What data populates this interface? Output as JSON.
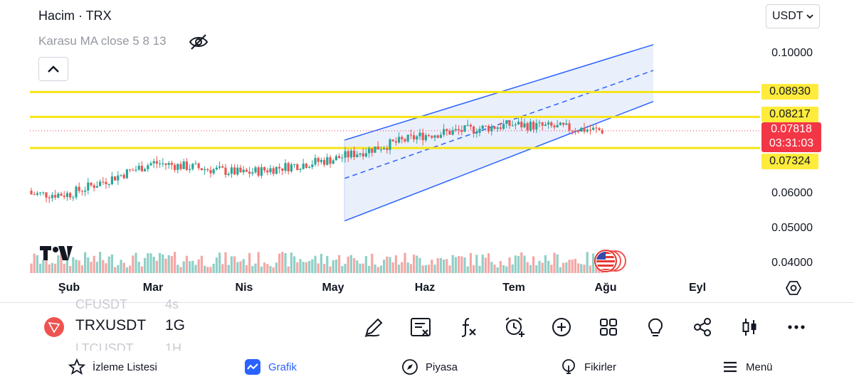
{
  "chart_header": {
    "title": "Hacim · TRX",
    "indicator": "Karasu MA close 5 8 13",
    "currency": "USDT"
  },
  "icons": {
    "visibility": "eye-off-icon",
    "collapse": "chevron-up-icon",
    "currency_dropdown": "chevron-down-icon",
    "settings": "hexagon-settings-icon",
    "logo": "tradingview-logo-icon",
    "events": "us-flag-icon"
  },
  "price_axis": {
    "labels": [
      "0.10000",
      "0.06000",
      "0.05000",
      "0.04000"
    ]
  },
  "price_tags": {
    "level_1": "0.08930",
    "level_2": "0.08217",
    "level_3": "0.07324",
    "current_price": "0.07818",
    "countdown": "03:31:03"
  },
  "time_axis": {
    "months": [
      "Şub",
      "Mar",
      "Nis",
      "May",
      "Haz",
      "Tem",
      "Ağu",
      "Eyl"
    ]
  },
  "colors": {
    "up": "#26a69a",
    "down": "#ef5350",
    "volume_up": "#8fd0c7",
    "volume_down": "#f4a7a5",
    "level_line": "#f5e416",
    "channel_line": "#2962ff",
    "channel_fill": "#e6ecfb",
    "current_price": "#f23645",
    "accent": "#2962ff"
  },
  "chart_data": {
    "type": "candlestick",
    "series_name": "TRXUSDT",
    "timeframe": "1G",
    "y_range": [
      0.036,
      0.106
    ],
    "horizontal_levels": [
      0.0893,
      0.08217,
      0.07324
    ],
    "current_price": 0.07818,
    "channel": {
      "start_month": "May",
      "end_month": "Ağu",
      "upper": [
        0.0755,
        0.1029
      ],
      "middle": [
        0.0645,
        0.0955
      ],
      "lower": [
        0.0523,
        0.0866
      ]
    },
    "x_months": [
      "Şub",
      "Mar",
      "Nis",
      "May",
      "Haz",
      "Tem",
      "Ağu",
      "Eyl"
    ],
    "close_trend": [
      {
        "month": "Şub",
        "price": 0.06
      },
      {
        "month": "Mar",
        "price": 0.069
      },
      {
        "month": "Nis",
        "price": 0.066
      },
      {
        "month": "May",
        "price": 0.07
      },
      {
        "month": "Haz",
        "price": 0.077
      },
      {
        "month": "Tem",
        "price": 0.08
      },
      {
        "month": "Ağu",
        "price": 0.0782
      }
    ]
  },
  "symbol_bar": {
    "prev_symbol": "CFUSDT",
    "prev_tf": "4s",
    "symbol": "TRXUSDT",
    "timeframe": "1G",
    "next_symbol": "LTCUSDT",
    "next_tf": "1H",
    "tools": [
      "pen-icon",
      "object-tree-icon",
      "indicators-fx-icon",
      "alert-clock-icon",
      "add-icon",
      "layouts-grid-icon",
      "ideas-bulb-icon",
      "share-icon",
      "candle-type-icon",
      "more-icon"
    ]
  },
  "bottom_nav": {
    "watchlist": "İzleme Listesi",
    "chart": "Grafik",
    "market": "Piyasa",
    "ideas": "Fikirler",
    "menu": "Menü"
  }
}
